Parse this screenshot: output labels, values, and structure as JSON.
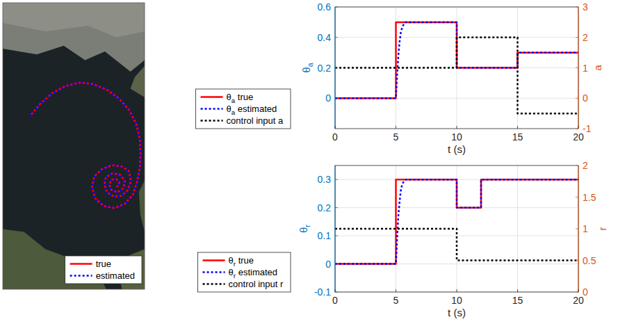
{
  "chart_data": [
    {
      "type": "line",
      "tick_labels": false,
      "xlim": [
        0,
        208
      ],
      "ylim": [
        0,
        420
      ],
      "legend": "lower right",
      "series": [
        {
          "name": "true",
          "color": "#ff0000",
          "line_style": "solid",
          "x": [
            40,
            55,
            72,
            92,
            112,
            132,
            152,
            170,
            185,
            196,
            201,
            202,
            201,
            197,
            191,
            179,
            163,
            148,
            136,
            131,
            134,
            145,
            160,
            175,
            185,
            188,
            183,
            174,
            163,
            153,
            149,
            151,
            161,
            172,
            179,
            177,
            168,
            159,
            156,
            160,
            167,
            171,
            169,
            165
          ],
          "values": [
            254,
            272,
            287,
            298,
            303,
            301,
            293,
            280,
            263,
            242,
            220,
            198,
            178,
            158,
            139,
            125,
            119,
            122,
            133,
            149,
            165,
            176,
            182,
            180,
            173,
            158,
            145,
            137,
            136,
            142,
            153,
            164,
            170,
            168,
            159,
            148,
            142,
            146,
            154,
            161,
            161,
            156,
            151,
            150
          ]
        },
        {
          "name": "estimated",
          "color": "#0000ff",
          "line_style": "dotted",
          "x": [
            40,
            55,
            72,
            92,
            112,
            132,
            152,
            170,
            185,
            196,
            201,
            202,
            201,
            197,
            191,
            179,
            163,
            148,
            136,
            131,
            134,
            145,
            160,
            175,
            185,
            188,
            183,
            174,
            163,
            153,
            149,
            151,
            161,
            172,
            179,
            177,
            168,
            159,
            156,
            160,
            167,
            171,
            169,
            165
          ],
          "values": [
            254,
            272,
            287,
            298,
            303,
            301,
            293,
            280,
            263,
            242,
            220,
            198,
            178,
            158,
            139,
            125,
            119,
            122,
            133,
            149,
            165,
            176,
            182,
            180,
            173,
            158,
            145,
            137,
            136,
            142,
            153,
            164,
            170,
            168,
            159,
            148,
            142,
            146,
            154,
            161,
            161,
            156,
            151,
            150
          ]
        }
      ]
    },
    {
      "type": "line",
      "xlabel": "t (s)",
      "ylabel": "θa",
      "y2label": "a",
      "grid": true,
      "legend": "left",
      "xlim": [
        0,
        20
      ],
      "xticks": [
        0,
        5,
        10,
        15,
        20
      ],
      "ylim": [
        -0.2,
        0.6
      ],
      "yticks": [
        0,
        0.2,
        0.4,
        0.6
      ],
      "y2lim": [
        -1,
        3
      ],
      "y2ticks": [
        -1,
        0,
        1,
        2,
        3
      ],
      "series": [
        {
          "name": "θa true",
          "color": "#ff0000",
          "line_style": "solid",
          "x": [
            0,
            5,
            5,
            10,
            10,
            15,
            15,
            20
          ],
          "values": [
            0,
            0,
            0.5,
            0.5,
            0.2,
            0.2,
            0.3,
            0.3
          ]
        },
        {
          "name": "θa estimated",
          "color": "#0000ff",
          "line_style": "dotted",
          "x": [
            0,
            5,
            5.1,
            5.2,
            5.3,
            5.4,
            5.5,
            5.6,
            5.8,
            10,
            10,
            15,
            15,
            20
          ],
          "values": [
            0,
            0,
            0.15,
            0.28,
            0.37,
            0.43,
            0.46,
            0.48,
            0.5,
            0.5,
            0.2,
            0.2,
            0.3,
            0.3
          ]
        },
        {
          "name": "control input a",
          "color": "#000000",
          "line_style": "dotted",
          "axis": "y2",
          "x": [
            0,
            10,
            10,
            15,
            15,
            20
          ],
          "values": [
            1,
            1,
            2,
            2,
            -0.5,
            -0.5
          ]
        }
      ]
    },
    {
      "type": "line",
      "xlabel": "t (s)",
      "ylabel": "θr",
      "y2label": "r",
      "grid": true,
      "legend": "left",
      "xlim": [
        0,
        20
      ],
      "xticks": [
        0,
        5,
        10,
        15,
        20
      ],
      "ylim": [
        -0.1,
        0.35
      ],
      "yticks": [
        -0.1,
        0,
        0.1,
        0.2,
        0.3
      ],
      "y2lim": [
        0,
        2
      ],
      "y2ticks": [
        0,
        0.5,
        1,
        1.5,
        2
      ],
      "series": [
        {
          "name": "θr true",
          "color": "#ff0000",
          "line_style": "solid",
          "x": [
            0,
            5,
            5,
            10,
            10,
            12,
            12,
            20
          ],
          "values": [
            0,
            0,
            0.3,
            0.3,
            0.2,
            0.2,
            0.3,
            0.3
          ]
        },
        {
          "name": "θr estimated",
          "color": "#0000ff",
          "line_style": "dotted",
          "x": [
            0,
            5,
            5.1,
            5.2,
            5.3,
            5.4,
            5.5,
            5.6,
            5.8,
            10,
            10,
            12,
            12,
            20
          ],
          "values": [
            0,
            0,
            0.09,
            0.17,
            0.22,
            0.26,
            0.28,
            0.29,
            0.3,
            0.3,
            0.2,
            0.2,
            0.3,
            0.3
          ]
        },
        {
          "name": "control input r",
          "color": "#000000",
          "line_style": "dotted",
          "axis": "y2",
          "x": [
            0,
            10,
            10,
            20
          ],
          "values": [
            1,
            1,
            0.5,
            0.5
          ]
        }
      ]
    }
  ]
}
